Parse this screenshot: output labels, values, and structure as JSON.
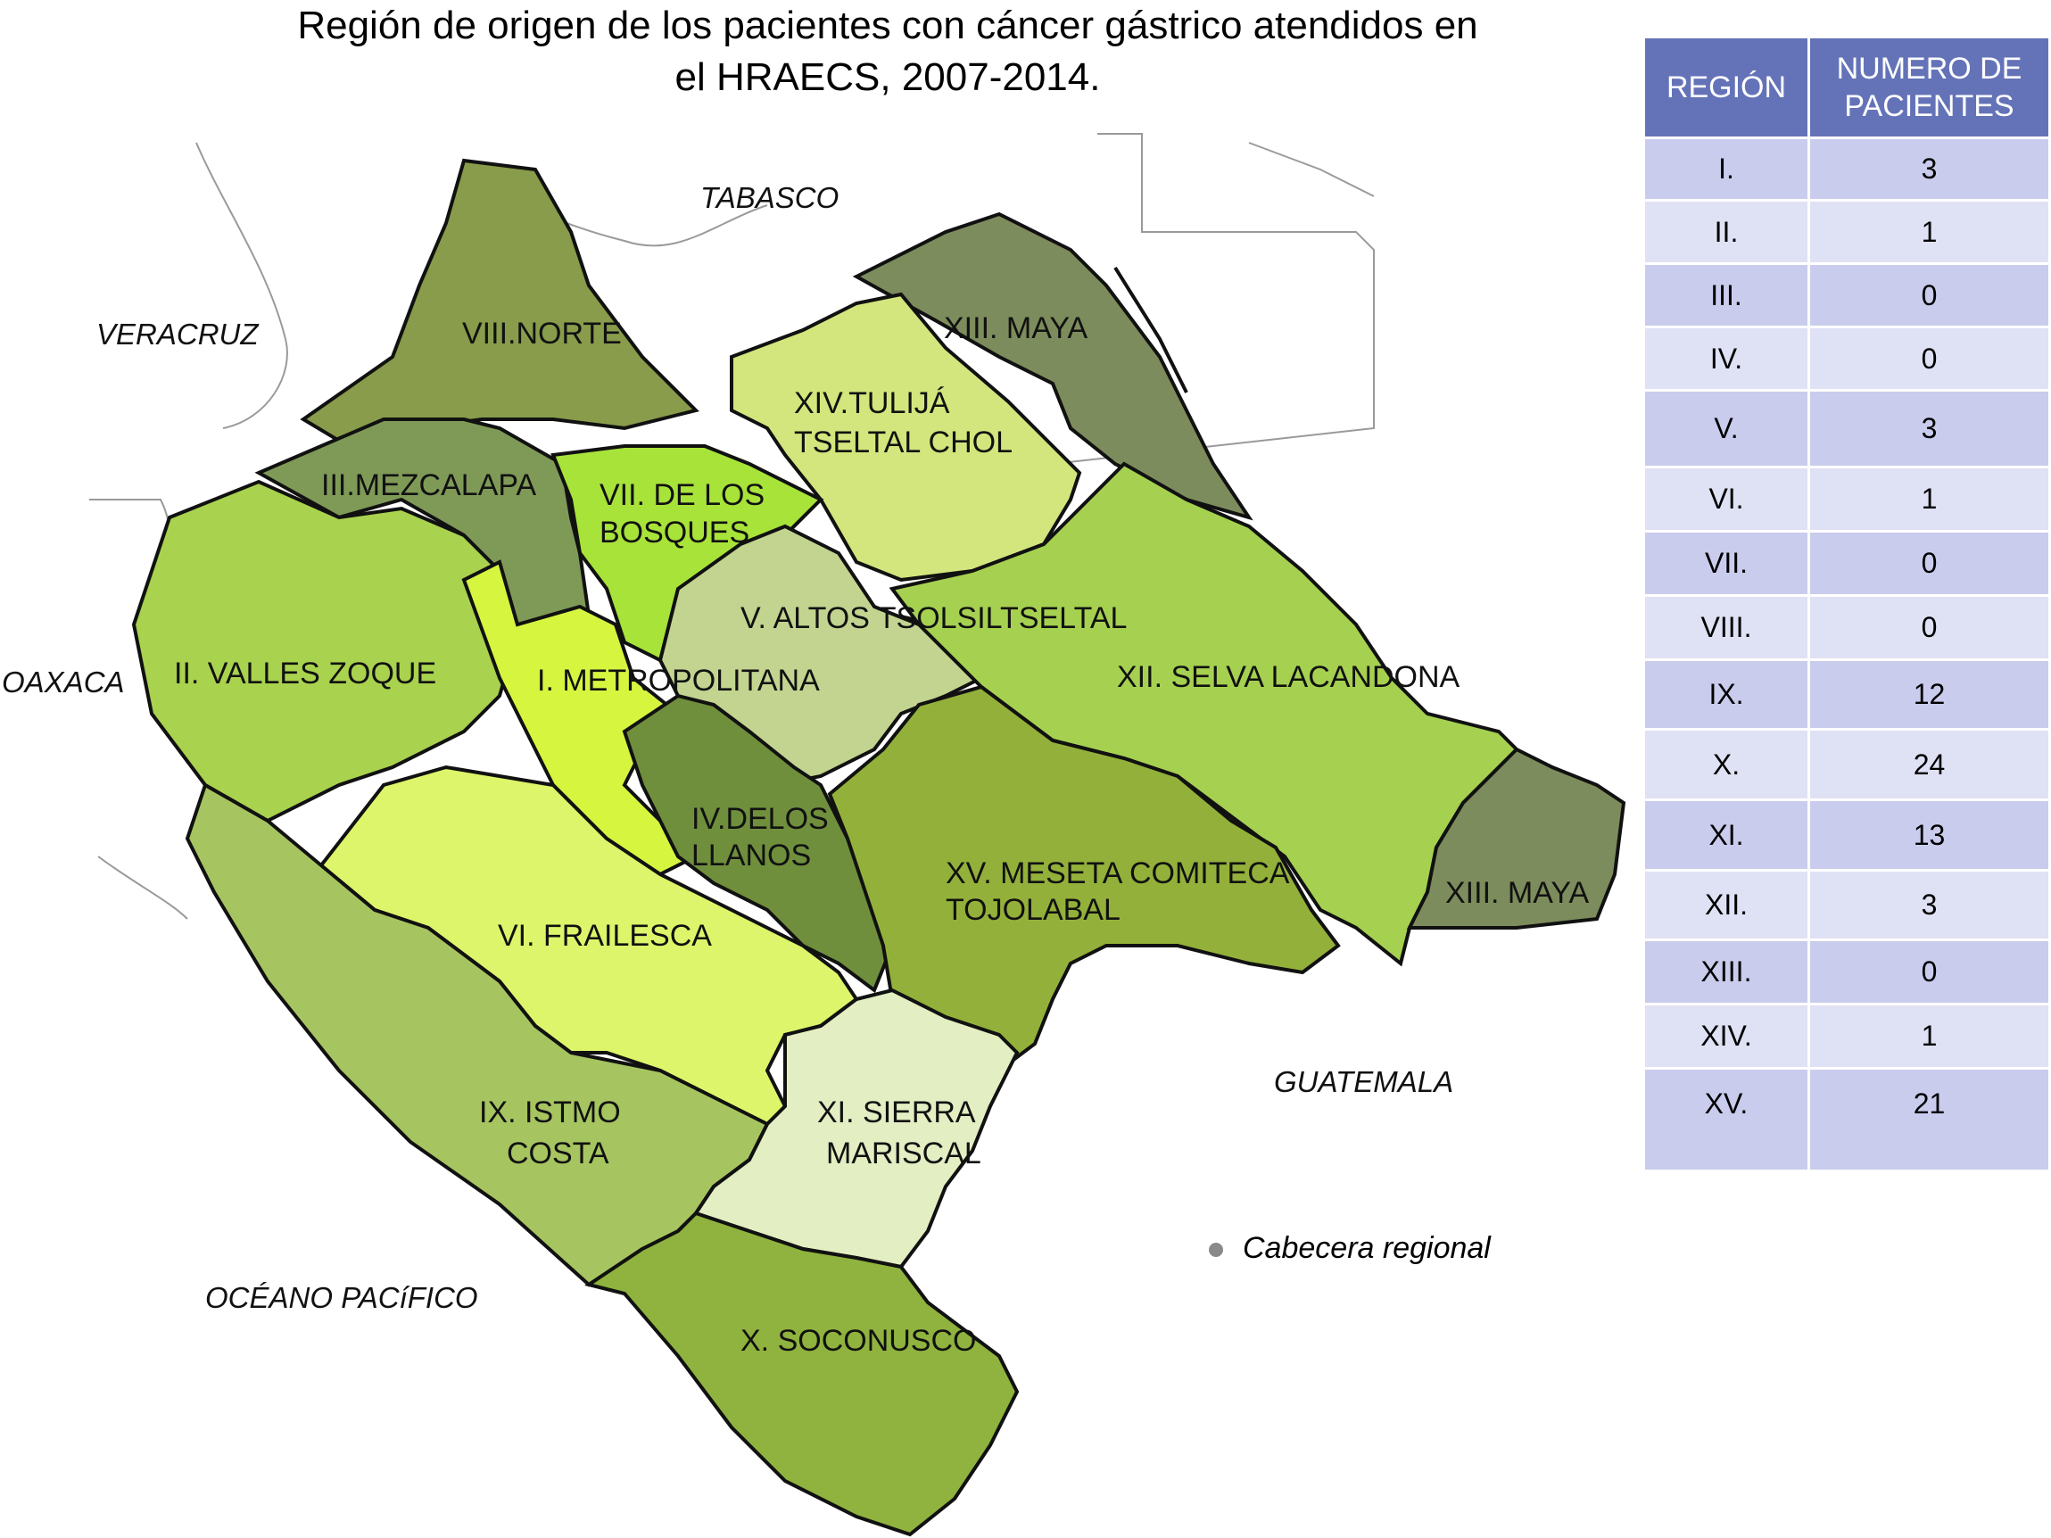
{
  "title": {
    "line1": "Región de origen de los pacientes con cáncer gástrico atendidos en",
    "line2": "el HRAECS, 2007-2014."
  },
  "map": {
    "neighbors": {
      "tabasco": "TABASCO",
      "veracruz": "VERACRUZ",
      "oaxaca": "OAXACA",
      "guatemala": "GUATEMALA",
      "ocean": "OCÉANO PACíFICO"
    },
    "regions": {
      "r1": "I. METROPOLITANA",
      "r2": "II. VALLES ZOQUE",
      "r3": "III.MEZCALAPA",
      "r4a": "IV.DELOS",
      "r4b": "LLANOS",
      "r5": "V. ALTOS TSOLSILTSELTAL",
      "r6": "VI. FRAILESCA",
      "r7a": "VII. DE LOS",
      "r7b": "BOSQUES",
      "r8": "VIII.NORTE",
      "r9a": "IX. ISTMO",
      "r9b": "COSTA",
      "r10": "X. SOCONUSCO",
      "r11a": "XI. SIERRA",
      "r11b": "MARISCAL",
      "r12": "XII. SELVA LACANDONA",
      "r13a": "XIII. MAYA",
      "r13b": "XIII. MAYA",
      "r14a": "XIV.TULIJÁ",
      "r14b": "TSELTAL CHOL",
      "r15a": "XV. MESETA COMITECA",
      "r15b": "TOJOLABAL"
    },
    "legend": "Cabecera regional",
    "colors": {
      "r1": "#d6f53f",
      "r2": "#a9d24e",
      "r3": "#7f9a57",
      "r4": "#6f8f3d",
      "r5": "#c2d48f",
      "r6": "#ddf56a",
      "r7": "#a8e33a",
      "r8": "#889c4b",
      "r9": "#a6c560",
      "r10": "#8fb33e",
      "r11": "#e3eec2",
      "r12": "#a6d150",
      "r13": "#7d8c5c",
      "r14": "#d2e67d",
      "r15": "#93b13a"
    }
  },
  "table": {
    "headers": [
      "REGIÓN",
      "NUMERO DE PACIENTES"
    ],
    "rows": [
      {
        "region": "I.",
        "patients": "3"
      },
      {
        "region": "II.",
        "patients": "1"
      },
      {
        "region": "III.",
        "patients": "0"
      },
      {
        "region": "IV.",
        "patients": "0"
      },
      {
        "region": "V.",
        "patients": "3"
      },
      {
        "region": "VI.",
        "patients": "1"
      },
      {
        "region": "VII.",
        "patients": "0"
      },
      {
        "region": "VIII.",
        "patients": "0"
      },
      {
        "region": "IX.",
        "patients": "12"
      },
      {
        "region": "X.",
        "patients": "24"
      },
      {
        "region": "XI.",
        "patients": "13"
      },
      {
        "region": "XII.",
        "patients": "3"
      },
      {
        "region": "XIII.",
        "patients": "0"
      },
      {
        "region": "XIV.",
        "patients": "1"
      },
      {
        "region": "XV.",
        "patients": "21"
      }
    ],
    "colors": {
      "header": "#6473b8",
      "row_a": "#c9ccec",
      "row_b": "#dfe1f4"
    }
  }
}
